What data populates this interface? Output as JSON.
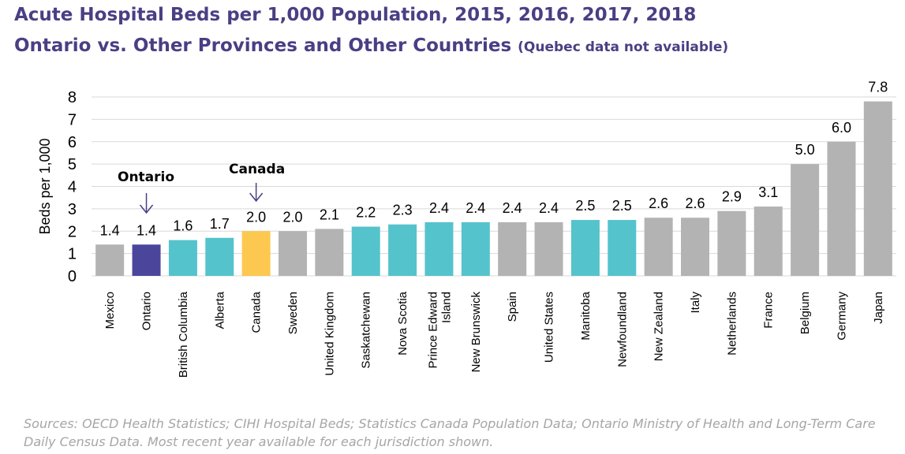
{
  "header": {
    "title": "Acute Hospital Beds per 1,000 Population, 2015, 2016, 2017, 2018",
    "subtitle": "Ontario vs. Other Provinces and Other Countries",
    "subtitle_note": "(Quebec data not available)"
  },
  "source_note": "Sources: OECD Health Statistics; CIHI Hospital Beds; Statistics Canada Population Data; Ontario Ministry of Health and Long-Term Care Daily Census Data. Most recent year available for each jurisdiction shown.",
  "annotations": {
    "ontario": "Ontario",
    "canada": "Canada"
  },
  "colors": {
    "country": "#b3b3b3",
    "province": "#55c3cc",
    "ontario": "#4b469c",
    "canada": "#fcc84f",
    "title": "#4a3f84"
  },
  "chart_data": {
    "type": "bar",
    "ylabel": "Beds per 1,000",
    "ylim": [
      0,
      8
    ],
    "yticks": [
      0,
      1,
      2,
      3,
      4,
      5,
      6,
      7,
      8
    ],
    "grid": true,
    "categories": [
      "Mexico",
      "Ontario",
      "British Columbia",
      "Alberta",
      "Canada",
      "Sweden",
      "United Kingdom",
      "Saskatchewan",
      "Nova Scotia",
      "Prince Edward Island",
      "New Brunswick",
      "Spain",
      "United States",
      "Manitoba",
      "Newfoundland",
      "New Zealand",
      "Italy",
      "Netherlands",
      "France",
      "Belgium",
      "Germany",
      "Japan"
    ],
    "values": [
      1.4,
      1.4,
      1.6,
      1.7,
      2.0,
      2.0,
      2.1,
      2.2,
      2.3,
      2.4,
      2.4,
      2.4,
      2.4,
      2.5,
      2.5,
      2.6,
      2.6,
      2.9,
      3.1,
      5.0,
      6.0,
      7.8
    ],
    "value_labels": [
      "1.4",
      "1.4",
      "1.6",
      "1.7",
      "2.0",
      "2.0",
      "2.1",
      "2.2",
      "2.3",
      "2.4",
      "2.4",
      "2.4",
      "2.4",
      "2.5",
      "2.5",
      "2.6",
      "2.6",
      "2.9",
      "3.1",
      "5.0",
      "6.0",
      "7.8"
    ],
    "groups": [
      "country",
      "ontario",
      "province",
      "province",
      "canada",
      "country",
      "country",
      "province",
      "province",
      "province",
      "province",
      "country",
      "country",
      "province",
      "province",
      "country",
      "country",
      "country",
      "country",
      "country",
      "country",
      "country"
    ]
  }
}
